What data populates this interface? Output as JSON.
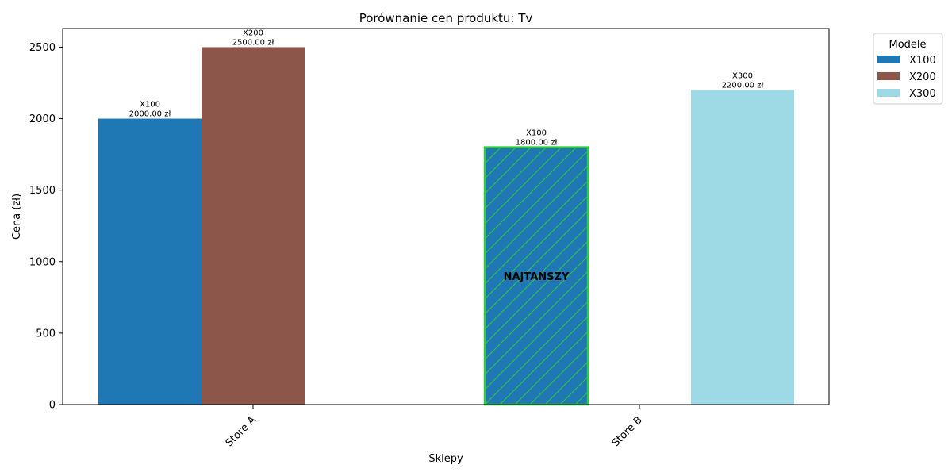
{
  "chart_data": {
    "type": "bar",
    "title": "Porównanie cen produktu: Tv",
    "xlabel": "Sklepy",
    "ylabel": "Cena (zł)",
    "ylim": [
      0,
      2630
    ],
    "yticks": [
      0,
      500,
      1000,
      1500,
      2000,
      2500
    ],
    "categories": [
      "Store A",
      "Store B"
    ],
    "series": [
      {
        "name": "X100",
        "color": "#1f77b4",
        "values": [
          2000,
          1800
        ]
      },
      {
        "name": "X200",
        "color": "#8c564b",
        "values": [
          2500,
          null
        ]
      },
      {
        "name": "X300",
        "color": "#9edae5",
        "values": [
          null,
          2200
        ]
      }
    ],
    "bar_labels": [
      {
        "category": "Store A",
        "series": "X100",
        "model": "X100",
        "price": "2000.00 zł"
      },
      {
        "category": "Store A",
        "series": "X200",
        "model": "X200",
        "price": "2500.00 zł"
      },
      {
        "category": "Store B",
        "series": "X100",
        "model": "X100",
        "price": "1800.00 zł"
      },
      {
        "category": "Store B",
        "series": "X300",
        "model": "X300",
        "price": "2200.00 zł"
      }
    ],
    "highlight": {
      "category": "Store B",
      "series": "X100",
      "text": "NAJTAŃSZY",
      "edge_color": "#2ecc40",
      "hatch": "diagonal"
    },
    "legend": {
      "title": "Modele",
      "position": "outside-top-right"
    },
    "grid": false
  }
}
